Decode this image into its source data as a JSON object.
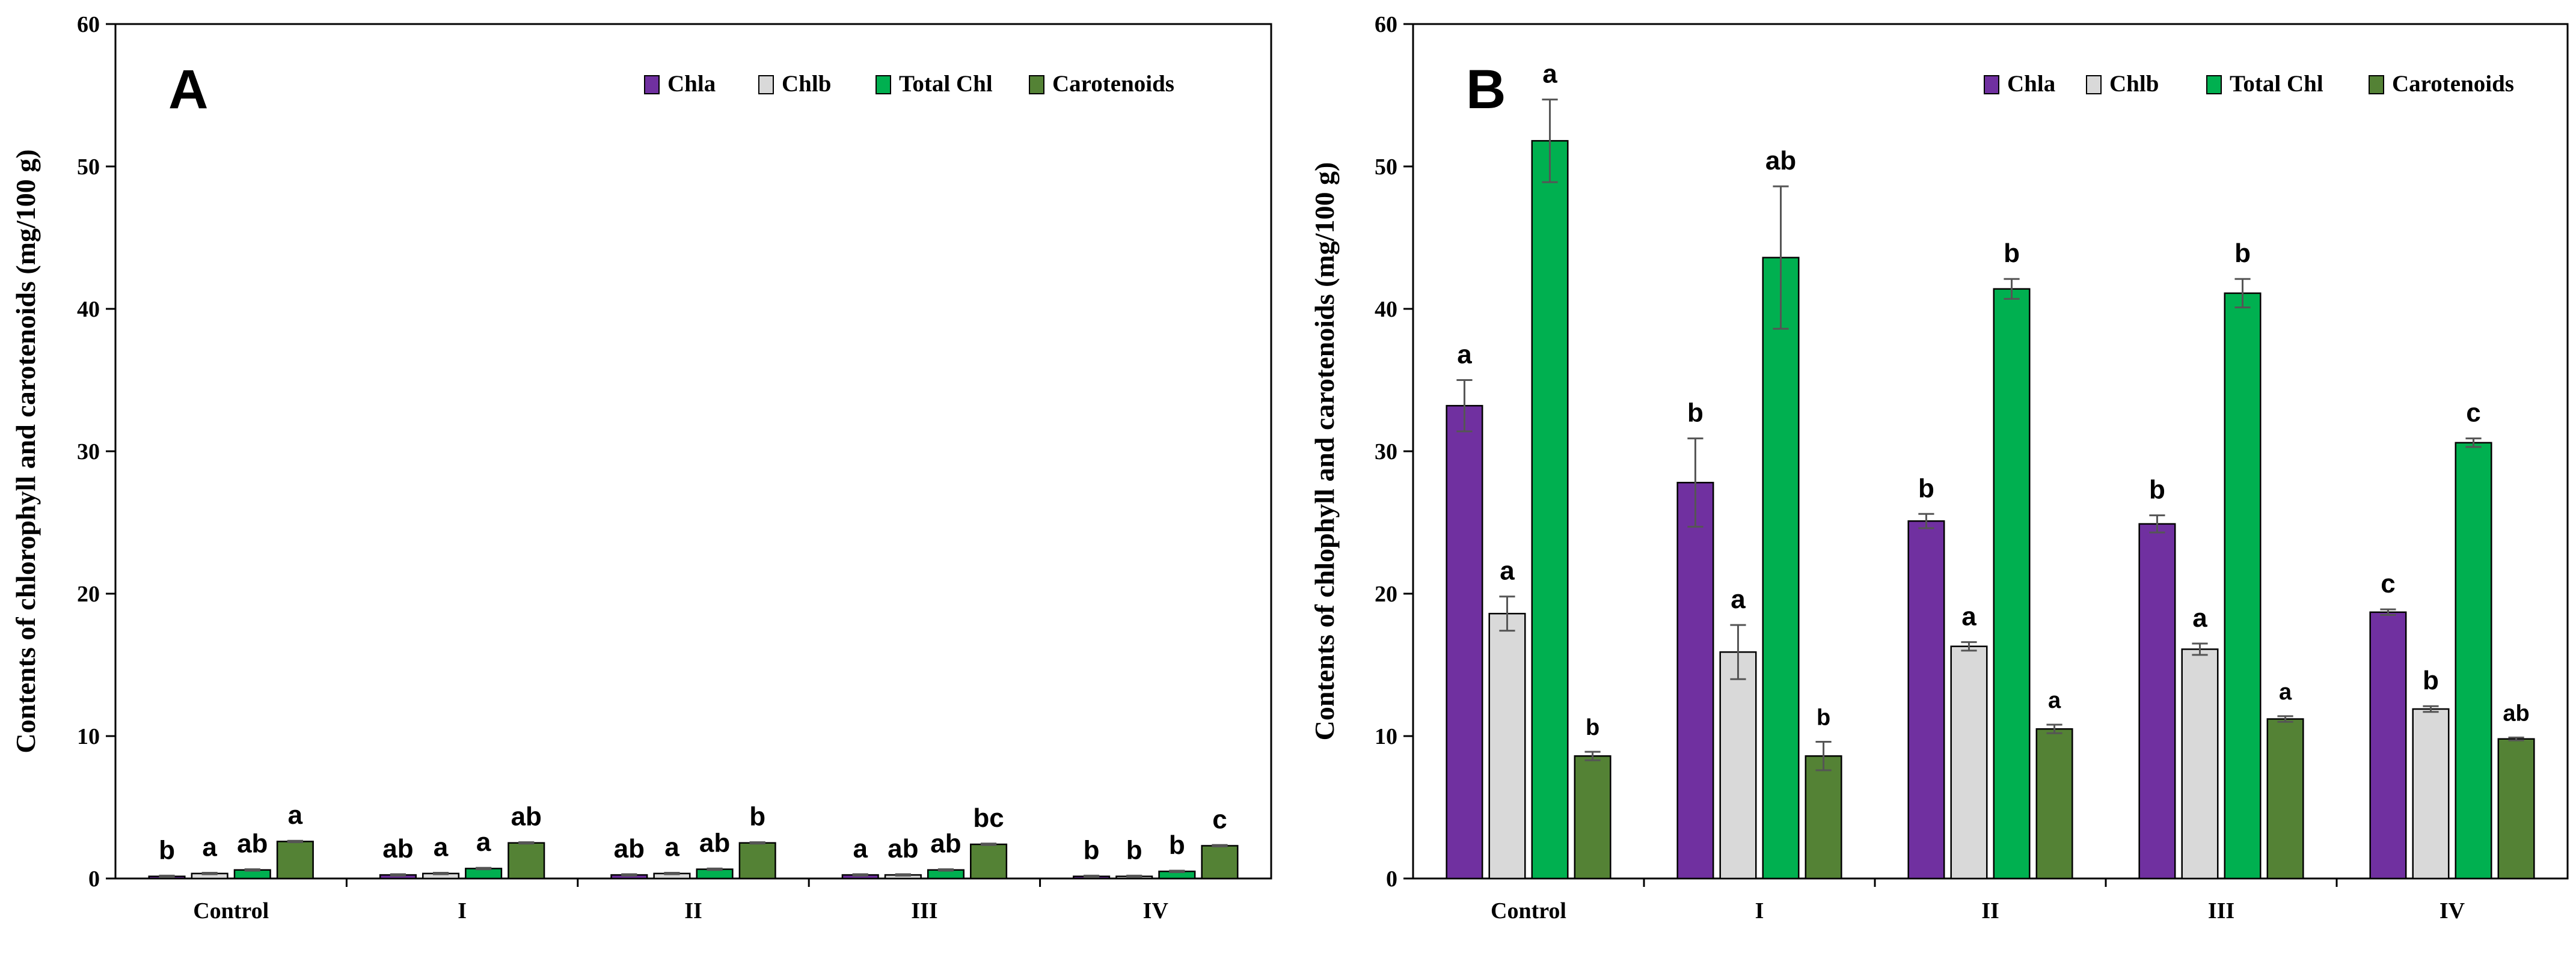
{
  "chart_data": [
    {
      "panel": "A",
      "type": "bar",
      "ylabel": "Contents of chlorophyll and carotenoids (mg/100 g)",
      "ylim": [
        0,
        60
      ],
      "yticks": [
        "0",
        "10",
        "20",
        "30",
        "40",
        "50",
        "60"
      ],
      "categories": [
        "Control",
        "I",
        "II",
        "III",
        "IV"
      ],
      "legend_position": "top-right",
      "series": [
        {
          "name": "Chla",
          "color": "#7030A0",
          "values": [
            0.15,
            0.25,
            0.25,
            0.25,
            0.15
          ],
          "errors": [
            0.05,
            0.05,
            0.05,
            0.05,
            0.05
          ],
          "labels": [
            "b",
            "ab",
            "ab",
            "a",
            "b"
          ]
        },
        {
          "name": "Chlb",
          "color": "#D9D9D9",
          "values": [
            0.35,
            0.35,
            0.35,
            0.25,
            0.15
          ],
          "errors": [
            0.05,
            0.05,
            0.05,
            0.05,
            0.05
          ],
          "labels": [
            "a",
            "a",
            "a",
            "ab",
            "b"
          ]
        },
        {
          "name": "Total Chl",
          "color": "#00B050",
          "values": [
            0.6,
            0.7,
            0.65,
            0.6,
            0.5
          ],
          "errors": [
            0.05,
            0.05,
            0.05,
            0.05,
            0.05
          ],
          "labels": [
            "ab",
            "a",
            "ab",
            "ab",
            "b"
          ]
        },
        {
          "name": "Carotenoids",
          "color": "#548235",
          "values": [
            2.6,
            2.5,
            2.5,
            2.4,
            2.3
          ],
          "errors": [
            0.05,
            0.05,
            0.05,
            0.05,
            0.05
          ],
          "labels": [
            "a",
            "ab",
            "b",
            "bc",
            "c"
          ]
        }
      ]
    },
    {
      "panel": "B",
      "type": "bar",
      "ylabel": "Contents of chlophyll and carotenoids  (mg/100 g)",
      "ylim": [
        0,
        60
      ],
      "yticks": [
        "0",
        "10",
        "20",
        "30",
        "40",
        "50",
        "60"
      ],
      "categories": [
        "Control",
        "I",
        "II",
        "III",
        "IV"
      ],
      "legend_position": "top-right",
      "series": [
        {
          "name": "Chla",
          "color": "#7030A0",
          "values": [
            33.2,
            27.8,
            25.1,
            24.9,
            18.7
          ],
          "errors": [
            1.8,
            3.1,
            0.5,
            0.6,
            0.2
          ],
          "labels": [
            "a",
            "b",
            "b",
            "b",
            "c"
          ]
        },
        {
          "name": "Chlb",
          "color": "#D9D9D9",
          "values": [
            18.6,
            15.9,
            16.3,
            16.1,
            11.9
          ],
          "errors": [
            1.2,
            1.9,
            0.3,
            0.4,
            0.2
          ],
          "labels": [
            "a",
            "a",
            "a",
            "a",
            "b"
          ]
        },
        {
          "name": "Total Chl",
          "color": "#00B050",
          "values": [
            51.8,
            43.6,
            41.4,
            41.1,
            30.6
          ],
          "errors": [
            2.9,
            5.0,
            0.7,
            1.0,
            0.3
          ],
          "labels": [
            "a",
            "ab",
            "b",
            "b",
            "c"
          ]
        },
        {
          "name": "Carotenoids",
          "color": "#548235",
          "values": [
            8.6,
            8.6,
            10.5,
            11.2,
            9.8
          ],
          "errors": [
            0.3,
            1.0,
            0.3,
            0.2,
            0.1
          ],
          "labels": [
            "b",
            "b",
            "a",
            "a",
            "ab"
          ]
        }
      ]
    }
  ]
}
